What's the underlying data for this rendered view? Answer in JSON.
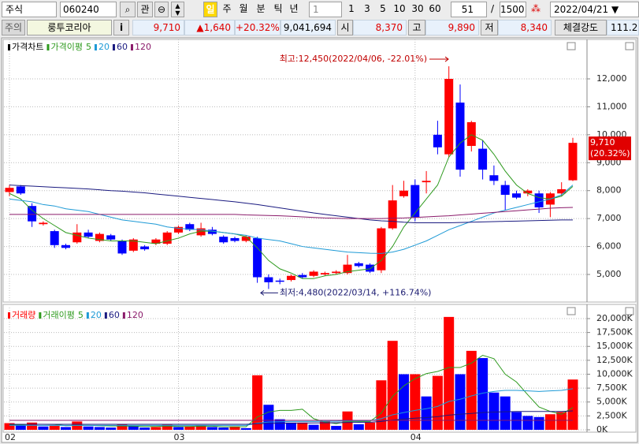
{
  "toolbar": {
    "market": "주식",
    "code": "060240",
    "watch": "관",
    "periods": [
      "일",
      "주",
      "월",
      "분",
      "틱",
      "년"
    ],
    "interval": "1",
    "intervals": [
      "1",
      "3",
      "5",
      "10",
      "30",
      "60"
    ],
    "bar_count": "51",
    "separator": "/",
    "max_bars": "1500",
    "date": "2022/04/21"
  },
  "quote": {
    "status": "주의",
    "name": "룽투코리아",
    "info": "i",
    "price": "9,710",
    "change": "▲1,640",
    "change_pct": "+20.32%",
    "volume": "9,041,694",
    "open_label": "시",
    "open": "8,370",
    "high_label": "고",
    "high": "9,890",
    "low_label": "저",
    "low": "8,340",
    "strength_label": "체결강도",
    "strength": "111.2"
  },
  "chart_data": [
    {
      "type": "candlestick",
      "title": "가격차트",
      "ma_title": "가격이평",
      "up_color": "#ff0000",
      "down_color": "#0000ff",
      "open": [
        7950,
        8150,
        7450,
        6800,
        6550,
        6050,
        6150,
        6500,
        6200,
        6400,
        6200,
        5850,
        6000,
        6100,
        6100,
        6500,
        6800,
        6400,
        6600,
        6350,
        6300,
        6200,
        6300,
        4900,
        4780,
        4800,
        4980,
        4950,
        5000,
        5050,
        5050,
        5400,
        5350,
        5150,
        6650,
        7800,
        8200,
        8300,
        10000,
        9300,
        11150,
        9600,
        9500,
        8550,
        8200,
        7900,
        7900,
        7900,
        7500,
        7900,
        8370
      ],
      "high": [
        8200,
        8200,
        7550,
        6900,
        6600,
        6100,
        6800,
        6600,
        6500,
        6450,
        6250,
        6300,
        6050,
        6300,
        6550,
        6750,
        6850,
        6850,
        6700,
        6400,
        6350,
        6400,
        6350,
        5000,
        4850,
        5000,
        5050,
        5150,
        5100,
        5150,
        5700,
        5450,
        5400,
        6700,
        8200,
        8350,
        8400,
        8700,
        10500,
        12450,
        11800,
        10500,
        9800,
        8900,
        8350,
        8000,
        8050,
        8000,
        7950,
        8300,
        9890
      ],
      "low": [
        7800,
        7850,
        6700,
        6750,
        5950,
        5900,
        6100,
        6300,
        6150,
        6200,
        5700,
        5800,
        5850,
        6050,
        6050,
        6450,
        6550,
        6350,
        6400,
        6100,
        6150,
        6150,
        4700,
        4480,
        4650,
        4750,
        4850,
        4900,
        4950,
        5000,
        5000,
        5250,
        5050,
        5050,
        6600,
        7750,
        6900,
        7900,
        9300,
        9200,
        8500,
        9400,
        8400,
        8200,
        7300,
        7700,
        7800,
        7200,
        7050,
        7800,
        8340
      ],
      "close": [
        8100,
        7900,
        6900,
        6850,
        6050,
        5950,
        6500,
        6350,
        6450,
        6250,
        5750,
        6250,
        5900,
        6250,
        6500,
        6700,
        6600,
        6650,
        6450,
        6150,
        6200,
        6350,
        4900,
        4720,
        4750,
        4950,
        4900,
        5100,
        5050,
        5100,
        5350,
        5300,
        5100,
        6650,
        7650,
        8000,
        7050,
        8350,
        9550,
        12000,
        8750,
        10450,
        8750,
        8350,
        7850,
        7750,
        8000,
        7400,
        7900,
        8050,
        9710
      ],
      "series": [
        {
          "name": "5",
          "color": "#2e9a1e",
          "values": [
            7900,
            7700,
            7300,
            7000,
            6750,
            6500,
            6400,
            6300,
            6250,
            6200,
            6200,
            6200,
            6150,
            6100,
            6200,
            6300,
            6450,
            6550,
            6550,
            6500,
            6450,
            6350,
            5950,
            5500,
            5200,
            5050,
            4850,
            4850,
            4950,
            5000,
            5100,
            5150,
            5200,
            5500,
            6000,
            6700,
            7200,
            7700,
            8200,
            9200,
            9700,
            10000,
            9800,
            9300,
            8700,
            8200,
            7900,
            7750,
            7700,
            7800,
            8150
          ]
        },
        {
          "name": "20",
          "color": "#1e9ad6",
          "values": [
            7700,
            7650,
            7600,
            7500,
            7450,
            7350,
            7300,
            7250,
            7150,
            7050,
            6950,
            6900,
            6850,
            6800,
            6700,
            6650,
            6620,
            6600,
            6550,
            6500,
            6450,
            6400,
            6300,
            6250,
            6200,
            6100,
            6000,
            5950,
            5900,
            5850,
            5800,
            5780,
            5760,
            5750,
            5800,
            5900,
            6050,
            6200,
            6400,
            6600,
            6750,
            6900,
            7050,
            7200,
            7300,
            7400,
            7500,
            7600,
            7700,
            7850,
            8200
          ]
        },
        {
          "name": "60",
          "color": "#1a1a80",
          "values": [
            8200,
            8180,
            8160,
            8140,
            8120,
            8100,
            8080,
            8060,
            8030,
            8000,
            7980,
            7950,
            7920,
            7880,
            7840,
            7800,
            7760,
            7720,
            7680,
            7640,
            7600,
            7550,
            7500,
            7440,
            7380,
            7320,
            7260,
            7200,
            7150,
            7100,
            7050,
            7000,
            6950,
            6920,
            6900,
            6870,
            6850,
            6850,
            6850,
            6850,
            6860,
            6870,
            6880,
            6890,
            6900,
            6910,
            6920,
            6930,
            6940,
            6950,
            6950
          ]
        },
        {
          "name": "120",
          "color": "#8a1a6a",
          "values": [
            7150,
            7150,
            7150,
            7150,
            7150,
            7150,
            7150,
            7150,
            7150,
            7150,
            7150,
            7150,
            7150,
            7150,
            7150,
            7150,
            7150,
            7150,
            7150,
            7150,
            7150,
            7130,
            7120,
            7110,
            7100,
            7080,
            7060,
            7040,
            7020,
            7010,
            7000,
            7000,
            7000,
            7000,
            7010,
            7020,
            7040,
            7060,
            7080,
            7100,
            7130,
            7160,
            7190,
            7220,
            7250,
            7280,
            7310,
            7340,
            7370,
            7390,
            7400
          ]
        }
      ],
      "ylim": [
        4040,
        13355
      ],
      "yticks": [
        {
          "value": 5000,
          "label": "5,000"
        },
        {
          "value": 6000,
          "label": "6,000"
        },
        {
          "value": 7000,
          "label": "7,000"
        },
        {
          "value": 8000,
          "label": "8,000"
        },
        {
          "value": 9000,
          "label": "9,000"
        },
        {
          "value": 10000,
          "label": "10,000"
        },
        {
          "value": 11000,
          "label": "11,000"
        },
        {
          "value": 12000,
          "label": "12,000"
        }
      ],
      "high_annotation": "최고:12,450(2022/04/06, -22.01%)",
      "low_annotation": "최저:4,480(2022/03/14, +116.74%)",
      "last_price_label": "9,710",
      "last_change_label": "(20.32%)",
      "grid": true
    },
    {
      "type": "bar",
      "title": "거래량",
      "ma_title": "거래이평",
      "up_color": "#ff0000",
      "down_color": "#0000ff",
      "categories": [
        "02",
        null,
        null,
        null,
        null,
        null,
        null,
        null,
        null,
        null,
        null,
        null,
        null,
        null,
        null,
        "03",
        null,
        null,
        null,
        null,
        null,
        null,
        null,
        null,
        null,
        null,
        null,
        null,
        null,
        null,
        null,
        null,
        null,
        null,
        null,
        null,
        "04",
        null,
        null,
        null,
        null,
        null,
        null,
        null,
        null,
        null,
        null,
        null,
        null,
        null,
        null
      ],
      "values": [
        1200,
        800,
        1300,
        600,
        700,
        500,
        1500,
        600,
        500,
        400,
        1000,
        700,
        400,
        500,
        900,
        500,
        600,
        800,
        500,
        400,
        600,
        300,
        9800,
        4500,
        1900,
        1300,
        1300,
        900,
        1500,
        700,
        3300,
        1000,
        1300,
        8900,
        16000,
        10000,
        10000,
        6000,
        9700,
        20300,
        10000,
        14200,
        12900,
        6700,
        6000,
        3200,
        2500,
        2300,
        2800,
        3200,
        9042
      ],
      "series": [
        {
          "name": "5",
          "color": "#2e9a1e",
          "values": [
            900,
            900,
            1000,
            1000,
            950,
            750,
            800,
            800,
            750,
            700,
            700,
            650,
            600,
            600,
            700,
            600,
            600,
            650,
            650,
            550,
            550,
            550,
            2300,
            3200,
            3500,
            3500,
            3700,
            2000,
            1400,
            1100,
            1500,
            1500,
            1500,
            3000,
            6000,
            7900,
            9200,
            10100,
            10500,
            11200,
            11200,
            12000,
            13400,
            12800,
            10000,
            8600,
            6300,
            4100,
            3300,
            2800,
            4000
          ]
        },
        {
          "name": "20",
          "color": "#1e9ad6",
          "values": [
            800,
            800,
            800,
            800,
            800,
            800,
            800,
            800,
            800,
            800,
            800,
            800,
            800,
            800,
            800,
            800,
            800,
            800,
            800,
            800,
            800,
            800,
            1200,
            1400,
            1450,
            1500,
            1500,
            1500,
            1550,
            1550,
            1600,
            1600,
            1650,
            2000,
            2700,
            3100,
            3500,
            3800,
            4200,
            5100,
            5500,
            6100,
            6600,
            6900,
            7100,
            7100,
            7000,
            6900,
            7000,
            7100,
            7400
          ]
        },
        {
          "name": "60",
          "color": "#1a1a80",
          "values": [
            1000,
            1000,
            1000,
            1000,
            1000,
            1000,
            1000,
            1000,
            1000,
            1000,
            1000,
            1000,
            1000,
            1000,
            1000,
            1000,
            1000,
            1000,
            1000,
            1000,
            1000,
            1000,
            1100,
            1150,
            1180,
            1200,
            1220,
            1240,
            1260,
            1280,
            1320,
            1340,
            1360,
            1500,
            1750,
            1950,
            2100,
            2200,
            2350,
            2650,
            2800,
            2950,
            3100,
            3200,
            3250,
            3300,
            3300,
            3300,
            3300,
            3300,
            3400
          ]
        },
        {
          "name": "120",
          "color": "#8a1a6a",
          "values": [
            1700,
            1700,
            1700,
            1700,
            1700,
            1700,
            1700,
            1700,
            1700,
            1700,
            1700,
            1700,
            1700,
            1700,
            1700,
            1700,
            1700,
            1700,
            1700,
            1700,
            1700,
            1700,
            1700,
            1700,
            1700,
            1700,
            1700,
            1700,
            1700,
            1700,
            1700,
            1700,
            1700,
            1700,
            1700,
            1700,
            1700,
            1700,
            1700,
            1700,
            1700,
            1700,
            1700,
            1700,
            1700,
            1700,
            1700,
            1700,
            1700,
            1700,
            1700
          ]
        }
      ],
      "ylim": [
        0,
        21700
      ],
      "yticks": [
        {
          "value": 0,
          "label": "0K"
        },
        {
          "value": 2500,
          "label": "2,500K"
        },
        {
          "value": 5000,
          "label": "5,000K"
        },
        {
          "value": 7500,
          "label": "7,500K"
        },
        {
          "value": 10000,
          "label": "10,000K"
        },
        {
          "value": 12500,
          "label": "12,500K"
        },
        {
          "value": 15000,
          "label": "15,000K"
        },
        {
          "value": 17500,
          "label": "17,500K"
        },
        {
          "value": 20000,
          "label": "20,000K"
        }
      ],
      "grid": true
    }
  ]
}
